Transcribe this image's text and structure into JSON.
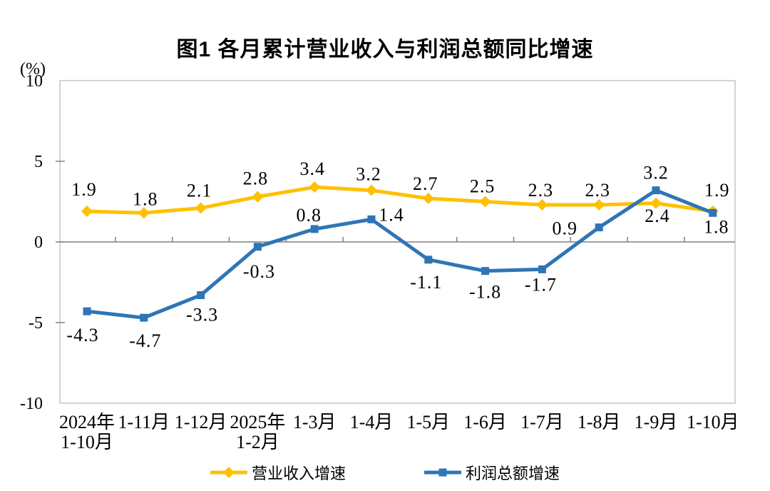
{
  "chart_data": {
    "type": "line",
    "title": "图1  各月累计营业收入与利润总额同比增速",
    "unit": "(%)",
    "categories": [
      "2024年\n1-10月",
      "1-11月",
      "1-12月",
      "2025年\n1-2月",
      "1-3月",
      "1-4月",
      "1-5月",
      "1-6月",
      "1-7月",
      "1-8月",
      "1-9月",
      "1-10月"
    ],
    "series": [
      {
        "name": "营业收入增速",
        "color": "#FFC000",
        "marker": "diamond",
        "values": [
          1.9,
          1.8,
          2.1,
          2.8,
          3.4,
          3.2,
          2.7,
          2.5,
          2.3,
          2.3,
          2.4,
          1.9
        ],
        "label_offsets": [
          [
            -4,
            -31
          ],
          [
            2,
            -20
          ],
          [
            -2,
            -25
          ],
          [
            -3,
            -26
          ],
          [
            -3,
            -26
          ],
          [
            -4,
            -23
          ],
          [
            -4,
            -21
          ],
          [
            -4,
            -22
          ],
          [
            -2,
            -21
          ],
          [
            -2,
            -21
          ],
          [
            2,
            17
          ],
          [
            6,
            -30
          ]
        ]
      },
      {
        "name": "利润总额增速",
        "color": "#2E75B6",
        "marker": "square",
        "values": [
          -4.3,
          -4.7,
          -3.3,
          -0.3,
          0.8,
          1.4,
          -1.1,
          -1.8,
          -1.7,
          0.9,
          3.2,
          1.8
        ],
        "label_offsets": [
          [
            -6,
            33
          ],
          [
            2,
            32
          ],
          [
            2,
            27
          ],
          [
            2,
            34
          ],
          [
            -8,
            -20
          ],
          [
            28,
            -7
          ],
          [
            -3,
            31
          ],
          [
            0,
            29
          ],
          [
            -2,
            21
          ],
          [
            -48,
            1
          ],
          [
            0,
            -25
          ],
          [
            5,
            19
          ]
        ]
      }
    ],
    "ylim": [
      -10,
      10
    ],
    "yticks": [
      10,
      5,
      0,
      -5,
      -10
    ],
    "grid": false,
    "legend_position": "bottom",
    "axis_frame_color": "#C6C6C6",
    "axis_line_color": "#808080",
    "text_color": "#000000",
    "background_color": "#FFFFFF"
  }
}
